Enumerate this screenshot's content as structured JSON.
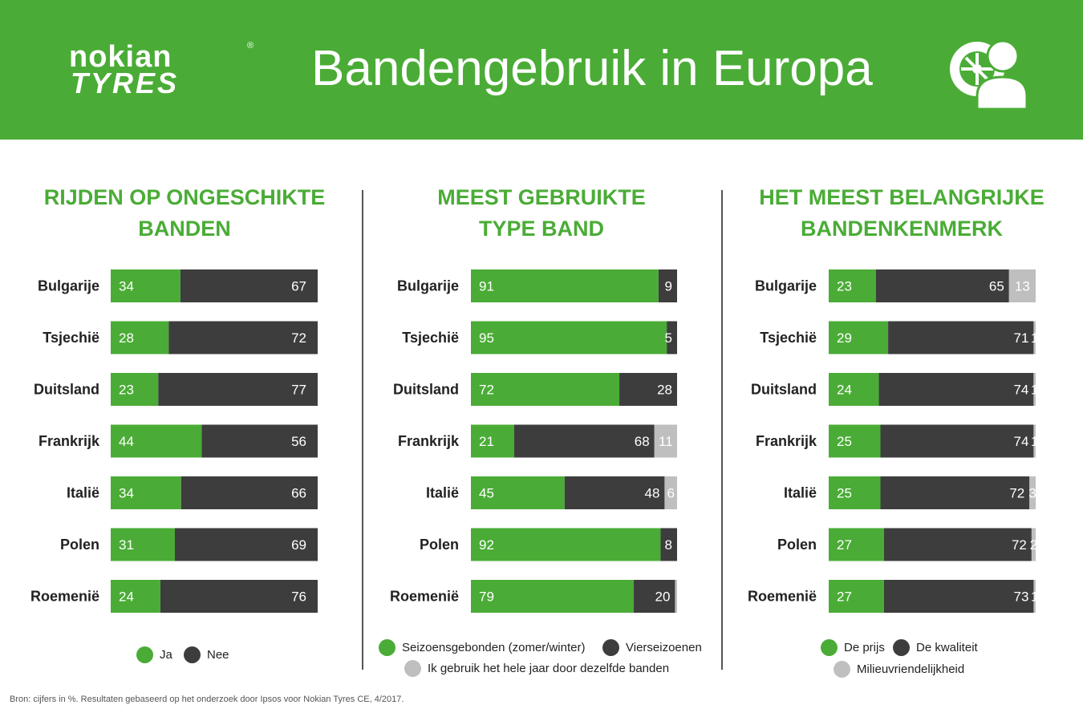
{
  "colors": {
    "green": "#4aac36",
    "dark": "#3d3d3d",
    "light": "#bfbfbf",
    "header_bg": "#4aac36"
  },
  "header": {
    "logo_line1": "nokian",
    "logo_line2": "TYRES",
    "logo_reg": "®",
    "title": "Bandengebruik in Europa",
    "icon": "tyre-person-icon"
  },
  "chart_data": [
    {
      "type": "bar",
      "stacked": true,
      "orientation": "horizontal",
      "title": "RIJDEN OP ONGESCHIKTE BANDEN",
      "categories": [
        "Bulgarije",
        "Tsjechië",
        "Duitsland",
        "Frankrijk",
        "Italië",
        "Polen",
        "Roemenië"
      ],
      "series": [
        {
          "name": "Ja",
          "color": "#4aac36",
          "values": [
            34,
            28,
            23,
            44,
            34,
            31,
            24
          ]
        },
        {
          "name": "Nee",
          "color": "#3d3d3d",
          "values": [
            67,
            72,
            77,
            56,
            66,
            69,
            76
          ]
        }
      ],
      "legend_position": "bottom",
      "grid": false
    },
    {
      "type": "bar",
      "stacked": true,
      "orientation": "horizontal",
      "title": "MEEST GEBRUIKTE TYPE BAND",
      "categories": [
        "Bulgarije",
        "Tsjechië",
        "Duitsland",
        "Frankrijk",
        "Italië",
        "Polen",
        "Roemenië"
      ],
      "series": [
        {
          "name": "Seizoensgebonden (zomer/winter)",
          "color": "#4aac36",
          "values": [
            91,
            95,
            72,
            21,
            45,
            92,
            79
          ]
        },
        {
          "name": "Vierseizoenen",
          "color": "#3d3d3d",
          "values": [
            9,
            5,
            28,
            68,
            48,
            8,
            20
          ]
        },
        {
          "name": "Ik gebruik het hele jaar door dezelfde banden",
          "color": "#bfbfbf",
          "values": [
            0,
            0,
            0,
            11,
            6,
            0,
            1
          ]
        }
      ],
      "value_labels": [
        [
          "91",
          "9",
          ""
        ],
        [
          "95",
          "5",
          ""
        ],
        [
          "72",
          "28",
          ""
        ],
        [
          "21",
          "68",
          "11"
        ],
        [
          "45",
          "48",
          "6"
        ],
        [
          "92",
          "8",
          ""
        ],
        [
          "79",
          "20",
          ""
        ]
      ],
      "legend_position": "bottom",
      "grid": false
    },
    {
      "type": "bar",
      "stacked": true,
      "orientation": "horizontal",
      "title": "HET MEEST BELANGRIJKE BANDENKENMERK",
      "categories": [
        "Bulgarije",
        "Tsjechië",
        "Duitsland",
        "Frankrijk",
        "Italië",
        "Polen",
        "Roemenië"
      ],
      "series": [
        {
          "name": "De prijs",
          "color": "#4aac36",
          "values": [
            23,
            29,
            24,
            25,
            25,
            27,
            27
          ]
        },
        {
          "name": "De kwaliteit",
          "color": "#3d3d3d",
          "values": [
            65,
            71,
            74,
            74,
            72,
            72,
            73
          ]
        },
        {
          "name": "Milieuvriendelijkheid",
          "color": "#bfbfbf",
          "values": [
            13,
            1,
            1,
            1,
            3,
            2,
            1
          ]
        }
      ],
      "legend_position": "bottom",
      "grid": false
    }
  ],
  "panels": [
    {
      "title_line1": "RIJDEN OP ONGESCHIKTE",
      "title_line2": "BANDEN"
    },
    {
      "title_line1": "MEEST GEBRUIKTE",
      "title_line2": "TYPE BAND"
    },
    {
      "title_line1": "HET MEEST BELANGRIJKE",
      "title_line2": "BANDENKENMERK"
    }
  ],
  "footer": "Bron: cijfers in %. Resultaten gebaseerd op het onderzoek door Ipsos voor Nokian Tyres CE, 4/2017."
}
